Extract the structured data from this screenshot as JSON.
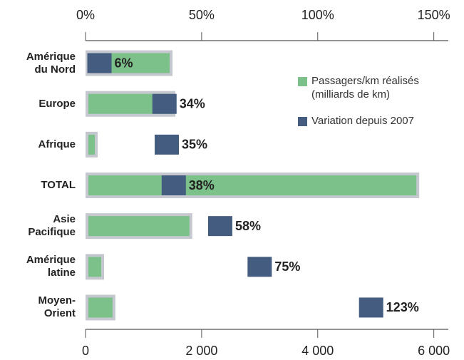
{
  "chart_data": {
    "type": "bar",
    "orientation": "horizontal",
    "categories": [
      "Amérique du Nord",
      "Europe",
      "Afrique",
      "TOTAL",
      "Asie Pacifique",
      "Amérique latine",
      "Moyen-Orient"
    ],
    "series": [
      {
        "name": "Passagers/km réalisés (milliards de km)",
        "color": "#7cc08a",
        "values": [
          1450,
          1500,
          160,
          5700,
          1790,
          270,
          465
        ]
      },
      {
        "name": "Variation depuis 2007",
        "color": "#435c80",
        "axis": "x2",
        "values": [
          6,
          34,
          35,
          38,
          58,
          75,
          123
        ],
        "value_labels": [
          "6%",
          "34%",
          "35%",
          "38%",
          "58%",
          "75%",
          "123%"
        ]
      }
    ],
    "xlim": [
      0,
      6250
    ],
    "xticks": [
      0,
      {
        "value": 2000,
        "label": "2 000"
      },
      {
        "value": 4000,
        "label": "4 000"
      },
      {
        "value": 6000,
        "label": "6 000"
      }
    ],
    "x2lim": [
      0,
      156.25
    ],
    "x2ticks": [
      {
        "value": 0,
        "label": "0%"
      },
      {
        "value": 50,
        "label": "50%"
      },
      {
        "value": 100,
        "label": "100%"
      },
      {
        "value": 150,
        "label": "150%"
      }
    ],
    "legend": "right"
  }
}
